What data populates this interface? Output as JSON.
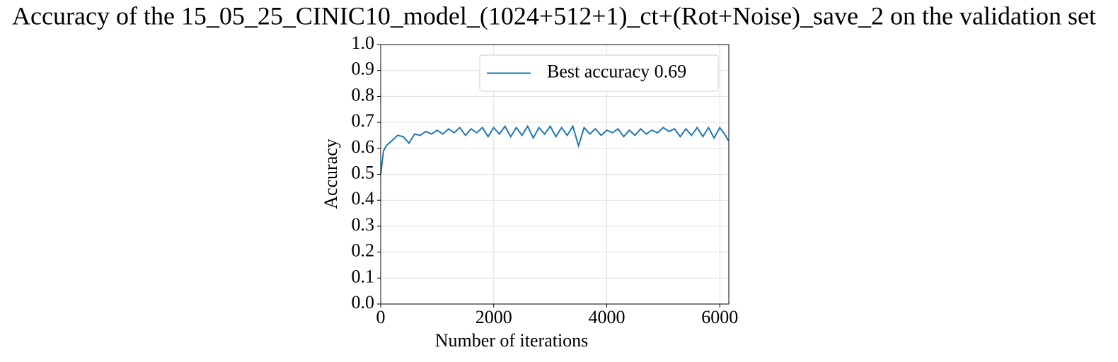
{
  "chart_data": {
    "type": "line",
    "title": "Accuracy of the 15_05_25_CINIC10_model_(1024+512+1)_ct+(Rot+Noise)_save_2 on the validation set",
    "xlabel": "Number of iterations",
    "ylabel": "Accuracy",
    "x": [
      0,
      50,
      100,
      200,
      300,
      400,
      500,
      600,
      700,
      800,
      900,
      1000,
      1100,
      1200,
      1300,
      1400,
      1500,
      1600,
      1700,
      1800,
      1900,
      2000,
      2100,
      2200,
      2300,
      2400,
      2500,
      2600,
      2700,
      2800,
      2900,
      3000,
      3100,
      3200,
      3300,
      3400,
      3500,
      3600,
      3700,
      3800,
      3900,
      4000,
      4100,
      4200,
      4300,
      4400,
      4500,
      4600,
      4700,
      4800,
      4900,
      5000,
      5100,
      5200,
      5300,
      5400,
      5500,
      5600,
      5700,
      5800,
      5900,
      6000,
      6100,
      6150
    ],
    "series": [
      {
        "name": "Best accuracy 0.69",
        "color": "#1f77b4",
        "values": [
          0.5,
          0.59,
          0.61,
          0.63,
          0.65,
          0.645,
          0.62,
          0.655,
          0.65,
          0.665,
          0.655,
          0.67,
          0.655,
          0.675,
          0.66,
          0.68,
          0.65,
          0.675,
          0.66,
          0.68,
          0.645,
          0.68,
          0.655,
          0.685,
          0.645,
          0.68,
          0.65,
          0.685,
          0.64,
          0.68,
          0.655,
          0.685,
          0.645,
          0.68,
          0.65,
          0.685,
          0.61,
          0.68,
          0.655,
          0.675,
          0.65,
          0.67,
          0.66,
          0.675,
          0.645,
          0.67,
          0.65,
          0.675,
          0.655,
          0.67,
          0.66,
          0.68,
          0.665,
          0.675,
          0.645,
          0.675,
          0.65,
          0.68,
          0.645,
          0.68,
          0.64,
          0.68,
          0.65,
          0.63
        ]
      }
    ],
    "xlim": [
      0,
      6160
    ],
    "ylim": [
      0,
      1
    ],
    "xticks": [
      0,
      2000,
      4000,
      6000
    ],
    "yticks": [
      {
        "value": 0,
        "label": "0.0"
      },
      0.1,
      0.2,
      0.3,
      0.4,
      0.5,
      0.6,
      0.7,
      0.8,
      0.9,
      {
        "value": 1,
        "label": "1.0"
      }
    ],
    "grid": true,
    "legend": "upper right"
  }
}
